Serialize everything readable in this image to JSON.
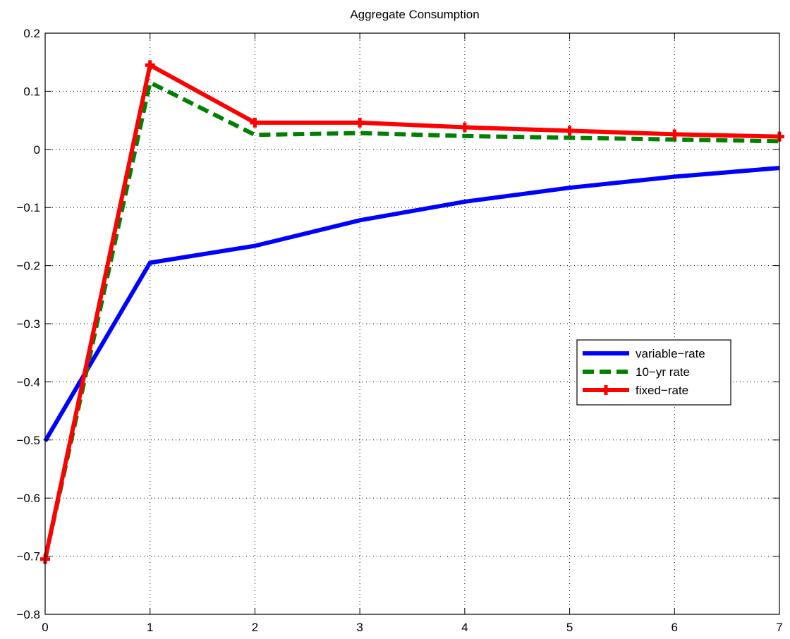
{
  "chart_data": {
    "type": "line",
    "title": "Aggregate Consumption",
    "xlabel": "",
    "ylabel": "",
    "xlim": [
      0,
      7
    ],
    "ylim": [
      -0.8,
      0.2
    ],
    "xticks": [
      "0",
      "1",
      "2",
      "3",
      "4",
      "5",
      "6",
      "7"
    ],
    "yticks": [
      "0.2",
      "0.1",
      "0",
      "−0.1",
      "−0.2",
      "−0.3",
      "−0.4",
      "−0.5",
      "−0.6",
      "−0.7",
      "−0.8"
    ],
    "grid": true,
    "legend_position": "right",
    "x": [
      0,
      1,
      2,
      3,
      4,
      5,
      6,
      7
    ],
    "series": [
      {
        "name": "variable−rate",
        "color": "#0000ff",
        "style": "solid",
        "values": [
          -0.502,
          -0.195,
          -0.166,
          -0.122,
          -0.09,
          -0.066,
          -0.047,
          -0.032
        ]
      },
      {
        "name": "10−yr rate",
        "color": "#008000",
        "style": "dashed",
        "values": [
          -0.705,
          0.115,
          0.025,
          0.028,
          0.023,
          0.02,
          0.017,
          0.014
        ]
      },
      {
        "name": "fixed−rate",
        "color": "#ff0000",
        "style": "solid-plus-markers",
        "values": [
          -0.705,
          0.145,
          0.046,
          0.046,
          0.038,
          0.032,
          0.026,
          0.022
        ]
      }
    ]
  }
}
